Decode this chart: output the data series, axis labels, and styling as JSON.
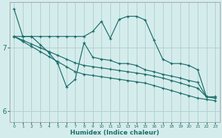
{
  "xlabel": "Humidex (Indice chaleur)",
  "bg_color": "#d5ecec",
  "grid_color": "#b0d0d0",
  "line_color": "#1a6e6a",
  "xlim_min": -0.5,
  "xlim_max": 23.5,
  "ylim_min": 5.82,
  "ylim_max": 7.72,
  "yticks": [
    6,
    7
  ],
  "xticks": [
    0,
    1,
    2,
    3,
    4,
    5,
    6,
    7,
    8,
    9,
    10,
    11,
    12,
    13,
    14,
    15,
    16,
    17,
    18,
    19,
    20,
    21,
    22,
    23
  ],
  "line1_x": [
    0,
    1,
    2,
    3,
    4,
    5,
    6,
    7,
    8,
    9,
    10,
    11,
    12,
    13,
    14,
    15,
    16,
    17,
    18,
    19,
    20,
    21,
    22,
    23
  ],
  "line1_y": [
    7.62,
    7.18,
    7.18,
    7.18,
    7.18,
    7.18,
    7.18,
    7.18,
    7.18,
    7.26,
    7.42,
    7.15,
    7.45,
    7.5,
    7.5,
    7.44,
    7.12,
    6.82,
    6.75,
    6.75,
    6.72,
    6.65,
    6.22,
    6.22
  ],
  "line2_x": [
    0,
    1,
    2,
    3,
    4,
    5,
    6,
    7,
    8,
    9,
    10,
    11,
    12,
    13,
    14,
    15,
    16,
    17,
    18,
    19,
    20,
    21,
    22,
    23
  ],
  "line2_y": [
    7.18,
    7.18,
    7.18,
    7.05,
    6.92,
    6.75,
    6.38,
    6.5,
    7.08,
    6.85,
    6.82,
    6.8,
    6.75,
    6.75,
    6.72,
    6.65,
    6.62,
    6.58,
    6.55,
    6.52,
    6.48,
    6.45,
    6.22,
    6.22
  ],
  "line3_x": [
    0,
    1,
    2,
    3,
    4,
    5,
    6,
    7,
    8,
    9,
    10,
    11,
    12,
    13,
    14,
    15,
    16,
    17,
    18,
    19,
    20,
    21,
    22,
    23
  ],
  "line3_y": [
    7.18,
    7.12,
    7.06,
    7.0,
    6.94,
    6.88,
    6.82,
    6.76,
    6.72,
    6.7,
    6.68,
    6.66,
    6.64,
    6.62,
    6.6,
    6.58,
    6.55,
    6.52,
    6.48,
    6.44,
    6.4,
    6.36,
    6.22,
    6.2
  ],
  "line4_x": [
    0,
    1,
    2,
    3,
    4,
    5,
    6,
    7,
    8,
    9,
    10,
    11,
    12,
    13,
    14,
    15,
    16,
    17,
    18,
    19,
    20,
    21,
    22,
    23
  ],
  "line4_y": [
    7.18,
    7.1,
    7.02,
    6.94,
    6.86,
    6.78,
    6.7,
    6.62,
    6.58,
    6.56,
    6.54,
    6.52,
    6.5,
    6.48,
    6.46,
    6.44,
    6.4,
    6.36,
    6.32,
    6.28,
    6.24,
    6.2,
    6.18,
    6.16
  ]
}
